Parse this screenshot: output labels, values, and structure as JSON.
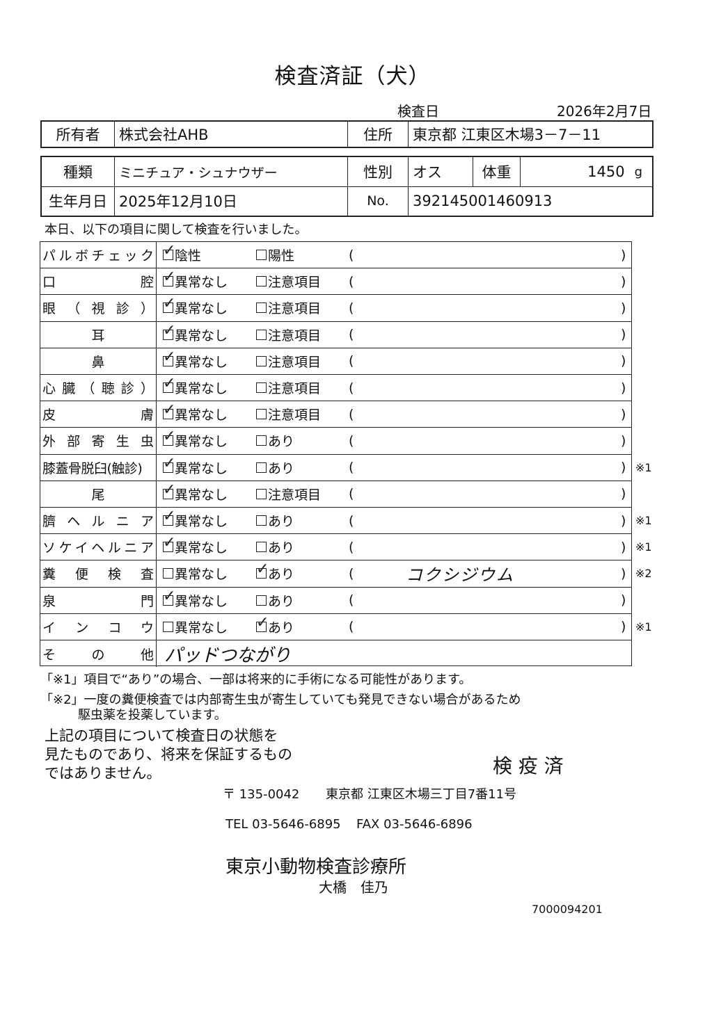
{
  "title": "検査済証（犬）",
  "exam_date_label": "検査日",
  "exam_date": "2026年2月7日",
  "owner": {
    "label": "所有者",
    "value": "株式会社AHB",
    "address_label": "住所",
    "address": "東京都 江東区木場3－7－11"
  },
  "pet": {
    "breed_label": "種類",
    "breed": "ミニチュア・シュナウザー",
    "sex_label": "性別",
    "sex": "オス",
    "weight_label": "体重",
    "weight": "1450",
    "weight_unit": "g",
    "birth_label": "生年月日",
    "birth": "2025年12月10日",
    "no_label": "No.",
    "no": "392145001460913"
  },
  "intro": "本日、以下の項目に関して検査を行いました。",
  "rows": [
    {
      "label": "パルボチェック",
      "opt1": "陰性",
      "opt2": "陽性",
      "checked": 1,
      "note": "",
      "detail": ""
    },
    {
      "label": "口腔",
      "opt1": "異常なし",
      "opt2": "注意項目",
      "checked": 1,
      "note": "",
      "detail": ""
    },
    {
      "label": "眼（視診）",
      "opt1": "異常なし",
      "opt2": "注意項目",
      "checked": 1,
      "note": "",
      "detail": ""
    },
    {
      "label": "耳",
      "opt1": "異常なし",
      "opt2": "注意項目",
      "checked": 1,
      "note": "",
      "detail": ""
    },
    {
      "label": "鼻",
      "opt1": "異常なし",
      "opt2": "注意項目",
      "checked": 1,
      "note": "",
      "detail": ""
    },
    {
      "label": "心臓（聴診）",
      "opt1": "異常なし",
      "opt2": "注意項目",
      "checked": 1,
      "note": "",
      "detail": ""
    },
    {
      "label": "皮膚",
      "opt1": "異常なし",
      "opt2": "注意項目",
      "checked": 1,
      "note": "",
      "detail": ""
    },
    {
      "label": "外部寄生虫",
      "opt1": "異常なし",
      "opt2": "あり",
      "checked": 1,
      "note": "",
      "detail": ""
    },
    {
      "label": "膝蓋骨脱臼(触診)",
      "opt1": "異常なし",
      "opt2": "あり",
      "checked": 1,
      "note": "※1",
      "detail": ""
    },
    {
      "label": "尾",
      "opt1": "異常なし",
      "opt2": "注意項目",
      "checked": 1,
      "note": "",
      "detail": ""
    },
    {
      "label": "臍ヘルニア",
      "opt1": "異常なし",
      "opt2": "あり",
      "checked": 1,
      "note": "※1",
      "detail": ""
    },
    {
      "label": "ソケイヘルニア",
      "opt1": "異常なし",
      "opt2": "あり",
      "checked": 1,
      "note": "※1",
      "detail": ""
    },
    {
      "label": "糞便検査",
      "opt1": "異常なし",
      "opt2": "あり",
      "checked": 2,
      "note": "※2",
      "detail": "コクシジウム"
    },
    {
      "label": "泉門",
      "opt1": "異常なし",
      "opt2": "あり",
      "checked": 1,
      "note": "",
      "detail": ""
    },
    {
      "label": "インコウ",
      "opt1": "異常なし",
      "opt2": "あり",
      "checked": 2,
      "note": "※1",
      "detail": ""
    }
  ],
  "other": {
    "label": "その他",
    "value": "パッドつながり"
  },
  "paren_open": "(",
  "paren_close": ")",
  "footnote1": "「※1」項目で“あり”の場合、一部は将来的に手術になる可能性があります。",
  "footnote2a": "「※2」一度の糞便検査では内部寄生虫が寄生していても発見できない場合があるため",
  "footnote2b": "駆虫薬を投薬しています。",
  "disclaimer": [
    "上記の項目について検査日の状態を",
    "見たものであり、将来を保証するもの",
    "ではありません。"
  ],
  "stamp": "検 疫 済",
  "postal": "〒 135-0042",
  "clinic_address": "東京都 江東区木場三丁目7番11号",
  "tel": "TEL 03-5646-6895",
  "fax": "FAX 03-5646-6896",
  "clinic_name": "東京小動物検査診療所",
  "doctor": "大橋　佳乃",
  "doc_number": "7000094201"
}
